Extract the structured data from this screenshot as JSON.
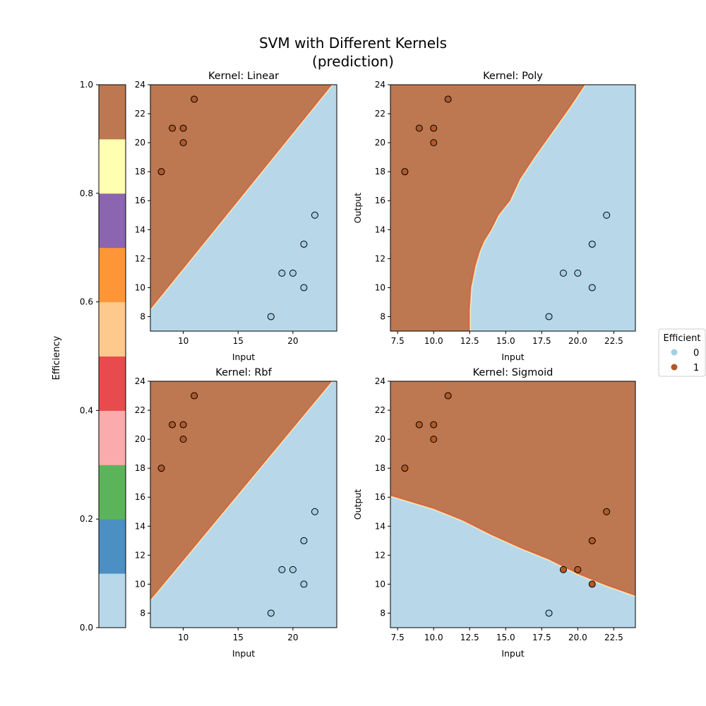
{
  "figure": {
    "title_line1": "SVM with Different Kernels",
    "title_line2": "(prediction)"
  },
  "colorbar": {
    "label": "Efficiency",
    "ticks": [
      "0.0",
      "0.2",
      "0.4",
      "0.6",
      "0.8",
      "1.0"
    ],
    "colors": [
      "#b8d8ea",
      "#4b8fc3",
      "#5bb45a",
      "#fbabab",
      "#e84b4d",
      "#fec98c",
      "#fe9638",
      "#8b65b0",
      "#feffb0",
      "#bd7851"
    ]
  },
  "legend": {
    "title": "Efficient",
    "entries": [
      {
        "label": "0",
        "color": "#a6cee3"
      },
      {
        "label": "1",
        "color": "#b15928"
      }
    ]
  },
  "colors": {
    "region_0": "#b8d8ea",
    "region_1": "#bd7851",
    "point_0": "#a6cee3",
    "point_1": "#b15928",
    "point_edge": "#000000"
  },
  "chart_data": [
    {
      "type": "scatter",
      "title": "Kernel: Linear",
      "xlabel": "Input",
      "ylabel": "",
      "xlim": [
        7,
        24
      ],
      "ylim": [
        7,
        24
      ],
      "xticks": [
        10,
        15,
        20
      ],
      "yticks": [
        8,
        10,
        12,
        14,
        16,
        18,
        20,
        22,
        24
      ],
      "boundary_x": [
        7,
        24
      ],
      "boundary_y": [
        8.5,
        24.4
      ],
      "points": [
        {
          "x": 8,
          "y": 18,
          "actual": 1,
          "predicted": 1
        },
        {
          "x": 9,
          "y": 21,
          "actual": 1,
          "predicted": 1
        },
        {
          "x": 10,
          "y": 21,
          "actual": 1,
          "predicted": 1
        },
        {
          "x": 10,
          "y": 20,
          "actual": 1,
          "predicted": 1
        },
        {
          "x": 11,
          "y": 23,
          "actual": 1,
          "predicted": 1
        },
        {
          "x": 18,
          "y": 8,
          "actual": 0,
          "predicted": 0
        },
        {
          "x": 19,
          "y": 11,
          "actual": 0,
          "predicted": 0
        },
        {
          "x": 20,
          "y": 11,
          "actual": 0,
          "predicted": 0
        },
        {
          "x": 21,
          "y": 10,
          "actual": 0,
          "predicted": 0
        },
        {
          "x": 21,
          "y": 13,
          "actual": 0,
          "predicted": 0
        },
        {
          "x": 22,
          "y": 15,
          "actual": 0,
          "predicted": 0
        }
      ]
    },
    {
      "type": "scatter",
      "title": "Kernel: Poly",
      "xlabel": "Input",
      "ylabel": "Output",
      "xlim": [
        7,
        24
      ],
      "ylim": [
        7,
        24
      ],
      "xticks": [
        7.5,
        10.0,
        12.5,
        15.0,
        17.5,
        20.0,
        22.5
      ],
      "yticks": [
        8,
        10,
        12,
        14,
        16,
        18,
        20,
        22,
        24
      ],
      "boundary_x": [
        12.5,
        12.5,
        12.6,
        12.9,
        13.2,
        13.5,
        14.0,
        14.5,
        15.3,
        16.0,
        17.0,
        18.0,
        19.5,
        20.5
      ],
      "boundary_y": [
        7.0,
        8.5,
        10.0,
        11.5,
        12.5,
        13.2,
        14.0,
        15.0,
        16.0,
        17.5,
        19.0,
        20.4,
        22.5,
        24.0
      ],
      "points": [
        {
          "x": 8,
          "y": 18,
          "actual": 1,
          "predicted": 1
        },
        {
          "x": 9,
          "y": 21,
          "actual": 1,
          "predicted": 1
        },
        {
          "x": 10,
          "y": 21,
          "actual": 1,
          "predicted": 1
        },
        {
          "x": 10,
          "y": 20,
          "actual": 1,
          "predicted": 1
        },
        {
          "x": 11,
          "y": 23,
          "actual": 1,
          "predicted": 1
        },
        {
          "x": 18,
          "y": 8,
          "actual": 0,
          "predicted": 0
        },
        {
          "x": 19,
          "y": 11,
          "actual": 0,
          "predicted": 0
        },
        {
          "x": 20,
          "y": 11,
          "actual": 0,
          "predicted": 0
        },
        {
          "x": 21,
          "y": 10,
          "actual": 0,
          "predicted": 0
        },
        {
          "x": 21,
          "y": 13,
          "actual": 0,
          "predicted": 0
        },
        {
          "x": 22,
          "y": 15,
          "actual": 0,
          "predicted": 0
        }
      ]
    },
    {
      "type": "scatter",
      "title": "Kernel: Rbf",
      "xlabel": "Input",
      "ylabel": "",
      "xlim": [
        7,
        24
      ],
      "ylim": [
        7,
        24
      ],
      "xticks": [
        10,
        15,
        20
      ],
      "yticks": [
        8,
        10,
        12,
        14,
        16,
        18,
        20,
        22,
        24
      ],
      "boundary_x": [
        7,
        24
      ],
      "boundary_y": [
        8.9,
        24.4
      ],
      "points": [
        {
          "x": 8,
          "y": 18,
          "actual": 1,
          "predicted": 1
        },
        {
          "x": 9,
          "y": 21,
          "actual": 1,
          "predicted": 1
        },
        {
          "x": 10,
          "y": 21,
          "actual": 1,
          "predicted": 1
        },
        {
          "x": 10,
          "y": 20,
          "actual": 1,
          "predicted": 1
        },
        {
          "x": 11,
          "y": 23,
          "actual": 1,
          "predicted": 1
        },
        {
          "x": 18,
          "y": 8,
          "actual": 0,
          "predicted": 0
        },
        {
          "x": 19,
          "y": 11,
          "actual": 0,
          "predicted": 0
        },
        {
          "x": 20,
          "y": 11,
          "actual": 0,
          "predicted": 0
        },
        {
          "x": 21,
          "y": 10,
          "actual": 0,
          "predicted": 0
        },
        {
          "x": 21,
          "y": 13,
          "actual": 0,
          "predicted": 0
        },
        {
          "x": 22,
          "y": 15,
          "actual": 0,
          "predicted": 0
        }
      ]
    },
    {
      "type": "scatter",
      "title": "Kernel: Sigmoid",
      "xlabel": "Input",
      "ylabel": "Output",
      "xlim": [
        7,
        24
      ],
      "ylim": [
        7,
        24
      ],
      "xticks": [
        7.5,
        10.0,
        12.5,
        15.0,
        17.5,
        20.0,
        22.5
      ],
      "yticks": [
        8,
        10,
        12,
        14,
        16,
        18,
        20,
        22,
        24
      ],
      "boundary_x": [
        7.0,
        8.0,
        10.0,
        12.0,
        14.0,
        16.0,
        18.0,
        20.0,
        22.0,
        24.0
      ],
      "boundary_y": [
        16.1,
        15.8,
        15.2,
        14.4,
        13.4,
        12.5,
        11.7,
        10.7,
        9.9,
        9.2
      ],
      "points": [
        {
          "x": 8,
          "y": 18,
          "actual": 1,
          "predicted": 1
        },
        {
          "x": 9,
          "y": 21,
          "actual": 1,
          "predicted": 1
        },
        {
          "x": 10,
          "y": 21,
          "actual": 1,
          "predicted": 1
        },
        {
          "x": 10,
          "y": 20,
          "actual": 1,
          "predicted": 1
        },
        {
          "x": 11,
          "y": 23,
          "actual": 1,
          "predicted": 1
        },
        {
          "x": 18,
          "y": 8,
          "actual": 0,
          "predicted": 0
        },
        {
          "x": 19,
          "y": 11,
          "actual": 0,
          "predicted": 1
        },
        {
          "x": 20,
          "y": 11,
          "actual": 0,
          "predicted": 1
        },
        {
          "x": 21,
          "y": 10,
          "actual": 0,
          "predicted": 1
        },
        {
          "x": 21,
          "y": 13,
          "actual": 0,
          "predicted": 1
        },
        {
          "x": 22,
          "y": 15,
          "actual": 0,
          "predicted": 1
        }
      ]
    }
  ]
}
